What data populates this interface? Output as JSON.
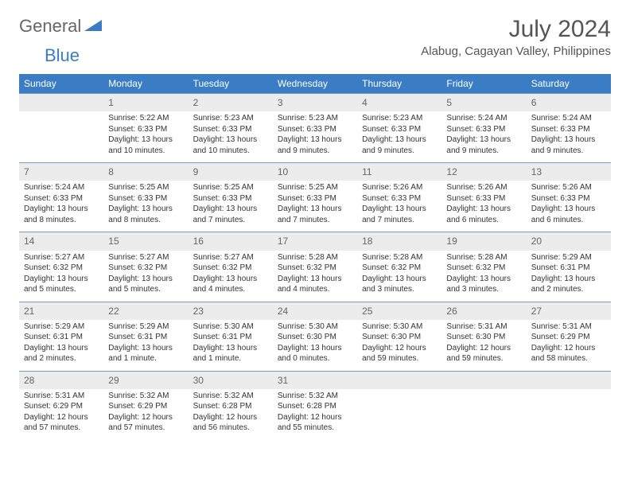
{
  "logo": {
    "general": "General",
    "blue": "Blue"
  },
  "title": "July 2024",
  "location": "Alabug, Cagayan Valley, Philippines",
  "colors": {
    "header_bg": "#3b7dc4",
    "daynum_bg": "#ececec",
    "border": "#7a9bc9"
  },
  "day_headers": [
    "Sunday",
    "Monday",
    "Tuesday",
    "Wednesday",
    "Thursday",
    "Friday",
    "Saturday"
  ],
  "weeks": [
    [
      {
        "n": "",
        "sr": "",
        "ss": "",
        "d1": "",
        "d2": ""
      },
      {
        "n": "1",
        "sr": "Sunrise: 5:22 AM",
        "ss": "Sunset: 6:33 PM",
        "d1": "Daylight: 13 hours",
        "d2": "and 10 minutes."
      },
      {
        "n": "2",
        "sr": "Sunrise: 5:23 AM",
        "ss": "Sunset: 6:33 PM",
        "d1": "Daylight: 13 hours",
        "d2": "and 10 minutes."
      },
      {
        "n": "3",
        "sr": "Sunrise: 5:23 AM",
        "ss": "Sunset: 6:33 PM",
        "d1": "Daylight: 13 hours",
        "d2": "and 9 minutes."
      },
      {
        "n": "4",
        "sr": "Sunrise: 5:23 AM",
        "ss": "Sunset: 6:33 PM",
        "d1": "Daylight: 13 hours",
        "d2": "and 9 minutes."
      },
      {
        "n": "5",
        "sr": "Sunrise: 5:24 AM",
        "ss": "Sunset: 6:33 PM",
        "d1": "Daylight: 13 hours",
        "d2": "and 9 minutes."
      },
      {
        "n": "6",
        "sr": "Sunrise: 5:24 AM",
        "ss": "Sunset: 6:33 PM",
        "d1": "Daylight: 13 hours",
        "d2": "and 9 minutes."
      }
    ],
    [
      {
        "n": "7",
        "sr": "Sunrise: 5:24 AM",
        "ss": "Sunset: 6:33 PM",
        "d1": "Daylight: 13 hours",
        "d2": "and 8 minutes."
      },
      {
        "n": "8",
        "sr": "Sunrise: 5:25 AM",
        "ss": "Sunset: 6:33 PM",
        "d1": "Daylight: 13 hours",
        "d2": "and 8 minutes."
      },
      {
        "n": "9",
        "sr": "Sunrise: 5:25 AM",
        "ss": "Sunset: 6:33 PM",
        "d1": "Daylight: 13 hours",
        "d2": "and 7 minutes."
      },
      {
        "n": "10",
        "sr": "Sunrise: 5:25 AM",
        "ss": "Sunset: 6:33 PM",
        "d1": "Daylight: 13 hours",
        "d2": "and 7 minutes."
      },
      {
        "n": "11",
        "sr": "Sunrise: 5:26 AM",
        "ss": "Sunset: 6:33 PM",
        "d1": "Daylight: 13 hours",
        "d2": "and 7 minutes."
      },
      {
        "n": "12",
        "sr": "Sunrise: 5:26 AM",
        "ss": "Sunset: 6:33 PM",
        "d1": "Daylight: 13 hours",
        "d2": "and 6 minutes."
      },
      {
        "n": "13",
        "sr": "Sunrise: 5:26 AM",
        "ss": "Sunset: 6:33 PM",
        "d1": "Daylight: 13 hours",
        "d2": "and 6 minutes."
      }
    ],
    [
      {
        "n": "14",
        "sr": "Sunrise: 5:27 AM",
        "ss": "Sunset: 6:32 PM",
        "d1": "Daylight: 13 hours",
        "d2": "and 5 minutes."
      },
      {
        "n": "15",
        "sr": "Sunrise: 5:27 AM",
        "ss": "Sunset: 6:32 PM",
        "d1": "Daylight: 13 hours",
        "d2": "and 5 minutes."
      },
      {
        "n": "16",
        "sr": "Sunrise: 5:27 AM",
        "ss": "Sunset: 6:32 PM",
        "d1": "Daylight: 13 hours",
        "d2": "and 4 minutes."
      },
      {
        "n": "17",
        "sr": "Sunrise: 5:28 AM",
        "ss": "Sunset: 6:32 PM",
        "d1": "Daylight: 13 hours",
        "d2": "and 4 minutes."
      },
      {
        "n": "18",
        "sr": "Sunrise: 5:28 AM",
        "ss": "Sunset: 6:32 PM",
        "d1": "Daylight: 13 hours",
        "d2": "and 3 minutes."
      },
      {
        "n": "19",
        "sr": "Sunrise: 5:28 AM",
        "ss": "Sunset: 6:32 PM",
        "d1": "Daylight: 13 hours",
        "d2": "and 3 minutes."
      },
      {
        "n": "20",
        "sr": "Sunrise: 5:29 AM",
        "ss": "Sunset: 6:31 PM",
        "d1": "Daylight: 13 hours",
        "d2": "and 2 minutes."
      }
    ],
    [
      {
        "n": "21",
        "sr": "Sunrise: 5:29 AM",
        "ss": "Sunset: 6:31 PM",
        "d1": "Daylight: 13 hours",
        "d2": "and 2 minutes."
      },
      {
        "n": "22",
        "sr": "Sunrise: 5:29 AM",
        "ss": "Sunset: 6:31 PM",
        "d1": "Daylight: 13 hours",
        "d2": "and 1 minute."
      },
      {
        "n": "23",
        "sr": "Sunrise: 5:30 AM",
        "ss": "Sunset: 6:31 PM",
        "d1": "Daylight: 13 hours",
        "d2": "and 1 minute."
      },
      {
        "n": "24",
        "sr": "Sunrise: 5:30 AM",
        "ss": "Sunset: 6:30 PM",
        "d1": "Daylight: 13 hours",
        "d2": "and 0 minutes."
      },
      {
        "n": "25",
        "sr": "Sunrise: 5:30 AM",
        "ss": "Sunset: 6:30 PM",
        "d1": "Daylight: 12 hours",
        "d2": "and 59 minutes."
      },
      {
        "n": "26",
        "sr": "Sunrise: 5:31 AM",
        "ss": "Sunset: 6:30 PM",
        "d1": "Daylight: 12 hours",
        "d2": "and 59 minutes."
      },
      {
        "n": "27",
        "sr": "Sunrise: 5:31 AM",
        "ss": "Sunset: 6:29 PM",
        "d1": "Daylight: 12 hours",
        "d2": "and 58 minutes."
      }
    ],
    [
      {
        "n": "28",
        "sr": "Sunrise: 5:31 AM",
        "ss": "Sunset: 6:29 PM",
        "d1": "Daylight: 12 hours",
        "d2": "and 57 minutes."
      },
      {
        "n": "29",
        "sr": "Sunrise: 5:32 AM",
        "ss": "Sunset: 6:29 PM",
        "d1": "Daylight: 12 hours",
        "d2": "and 57 minutes."
      },
      {
        "n": "30",
        "sr": "Sunrise: 5:32 AM",
        "ss": "Sunset: 6:28 PM",
        "d1": "Daylight: 12 hours",
        "d2": "and 56 minutes."
      },
      {
        "n": "31",
        "sr": "Sunrise: 5:32 AM",
        "ss": "Sunset: 6:28 PM",
        "d1": "Daylight: 12 hours",
        "d2": "and 55 minutes."
      },
      {
        "n": "",
        "sr": "",
        "ss": "",
        "d1": "",
        "d2": ""
      },
      {
        "n": "",
        "sr": "",
        "ss": "",
        "d1": "",
        "d2": ""
      },
      {
        "n": "",
        "sr": "",
        "ss": "",
        "d1": "",
        "d2": ""
      }
    ]
  ]
}
